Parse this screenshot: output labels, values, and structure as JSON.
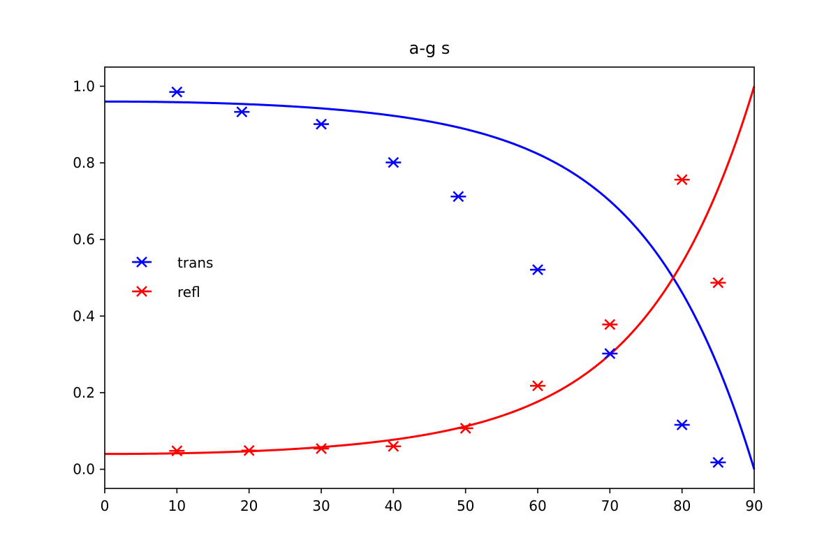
{
  "chart_data": {
    "type": "line",
    "title": "a-g s",
    "xlabel": "",
    "ylabel": "",
    "xlim": [
      0,
      90
    ],
    "ylim": [
      -0.05,
      1.05
    ],
    "x_ticks": [
      0,
      10,
      20,
      30,
      40,
      50,
      60,
      70,
      80,
      90
    ],
    "x_tick_labels": [
      "0",
      "10",
      "20",
      "30",
      "40",
      "50",
      "60",
      "70",
      "80",
      "90"
    ],
    "y_ticks": [
      0.0,
      0.2,
      0.4,
      0.6,
      0.8,
      1.0
    ],
    "y_tick_labels": [
      "0.0",
      "0.2",
      "0.4",
      "0.6",
      "0.8",
      "1.0"
    ],
    "grid": false,
    "legend_position": "center-left",
    "refractive_index_ratio": 1.5,
    "series": [
      {
        "name": "trans",
        "color": "#0000ff",
        "kind": "measured",
        "marker": "x-with-bar",
        "x": [
          10,
          19,
          30,
          40,
          49,
          60,
          70,
          80,
          85
        ],
        "y": [
          0.985,
          0.933,
          0.901,
          0.801,
          0.712,
          0.521,
          0.302,
          0.116,
          0.018
        ]
      },
      {
        "name": "refl",
        "color": "#ff0000",
        "kind": "measured",
        "marker": "x-with-bar",
        "x": [
          10,
          20,
          30,
          40,
          50,
          60,
          70,
          80,
          85
        ],
        "y": [
          0.048,
          0.049,
          0.054,
          0.06,
          0.107,
          0.218,
          0.378,
          0.756,
          0.487
        ]
      },
      {
        "color": "#0000ff",
        "kind": "theory-transmission",
        "x_range": [
          0,
          90
        ]
      },
      {
        "color": "#ff0000",
        "kind": "theory-reflection",
        "x_range": [
          0,
          90
        ]
      }
    ]
  }
}
